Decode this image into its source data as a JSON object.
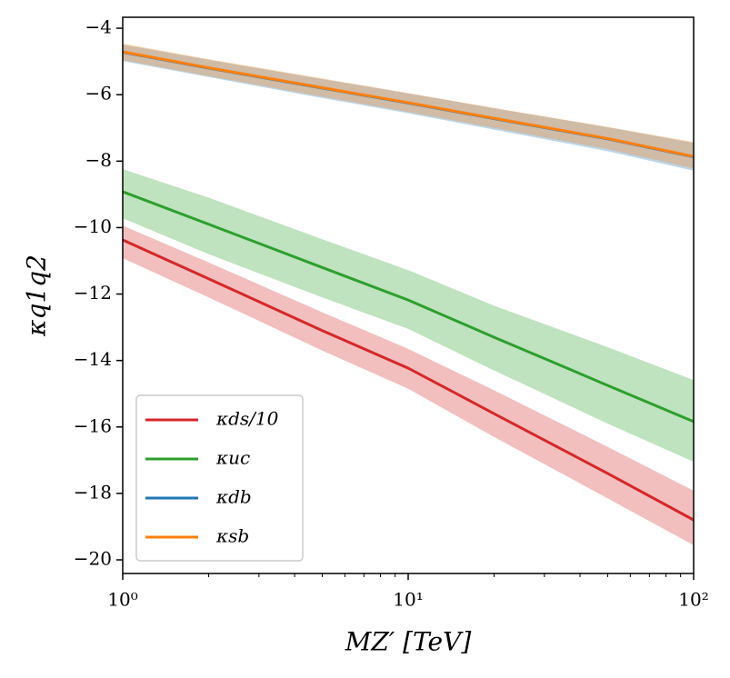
{
  "chart_data": {
    "type": "line",
    "xlabel": "MZ′ [TeV]",
    "ylabel": "κq1q2",
    "xscale": "log",
    "xlim": [
      1,
      100
    ],
    "xticks": [
      {
        "value": 1,
        "label": "10⁰"
      },
      {
        "value": 10,
        "label": "10¹"
      },
      {
        "value": 100,
        "label": "10²"
      }
    ],
    "ylim": [
      -20.41,
      -3.67
    ],
    "yticks": [
      {
        "value": -4,
        "label": "−4"
      },
      {
        "value": -6,
        "label": "−6"
      },
      {
        "value": -8,
        "label": "−8"
      },
      {
        "value": -10,
        "label": "−10"
      },
      {
        "value": -12,
        "label": "−12"
      },
      {
        "value": -14,
        "label": "−14"
      },
      {
        "value": -16,
        "label": "−16"
      },
      {
        "value": -18,
        "label": "−18"
      },
      {
        "value": -20,
        "label": "−20"
      }
    ],
    "legend": "lower left",
    "x": [
      1,
      2,
      5,
      10,
      20,
      50,
      100
    ],
    "series": [
      {
        "name": "κds/10",
        "color": "#d62728",
        "values": [
          -10.37,
          -11.54,
          -13.1,
          -14.23,
          -15.6,
          -17.4,
          -18.8
        ],
        "lower": [
          -10.92,
          -12.1,
          -13.7,
          -14.85,
          -16.3,
          -18.15,
          -19.56
        ],
        "upper": [
          -9.94,
          -11.05,
          -12.55,
          -13.65,
          -14.9,
          -16.6,
          -17.92
        ]
      },
      {
        "name": "κuc",
        "color": "#2ca02c",
        "values": [
          -8.92,
          -9.9,
          -11.2,
          -12.18,
          -13.3,
          -14.75,
          -15.84
        ],
        "lower": [
          -9.72,
          -10.8,
          -12.1,
          -13.05,
          -14.3,
          -15.9,
          -17.05
        ],
        "upper": [
          -8.24,
          -9.1,
          -10.35,
          -11.28,
          -12.35,
          -13.6,
          -14.59
        ]
      },
      {
        "name": "κdb",
        "color": "#1f77b4",
        "values": [
          -4.72,
          -5.2,
          -5.8,
          -6.25,
          -6.72,
          -7.33,
          -7.87
        ],
        "lower": [
          -4.99,
          -5.47,
          -6.1,
          -6.56,
          -7.05,
          -7.7,
          -8.29
        ],
        "upper": [
          -4.49,
          -4.95,
          -5.53,
          -5.96,
          -6.41,
          -6.98,
          -7.45
        ]
      },
      {
        "name": "κsb",
        "color": "#ff7f0e",
        "values": [
          -4.71,
          -5.19,
          -5.79,
          -6.24,
          -6.71,
          -7.32,
          -7.86
        ],
        "lower": [
          -4.96,
          -5.44,
          -6.06,
          -6.52,
          -7.0,
          -7.64,
          -8.22
        ],
        "upper": [
          -4.46,
          -4.93,
          -5.51,
          -5.95,
          -6.4,
          -6.97,
          -7.42
        ]
      }
    ]
  }
}
